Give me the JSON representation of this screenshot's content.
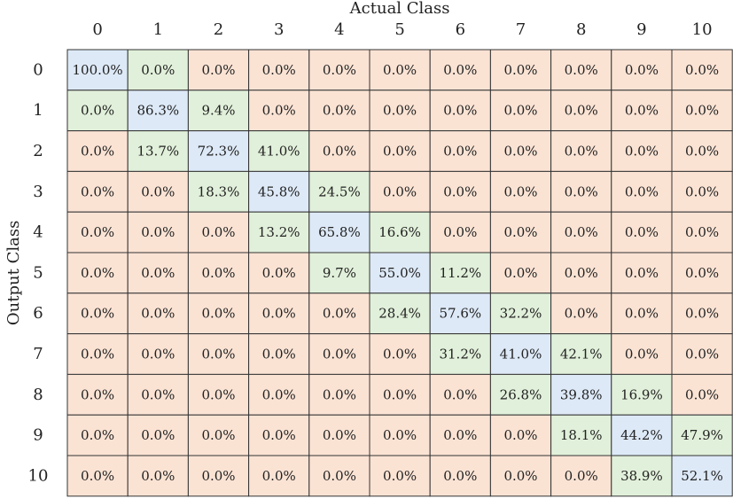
{
  "chart_data": {
    "type": "heatmap",
    "title": "",
    "xlabel": "Actual Class",
    "ylabel": "Output Class",
    "x_categories": [
      "0",
      "1",
      "2",
      "3",
      "4",
      "5",
      "6",
      "7",
      "8",
      "9",
      "10"
    ],
    "y_categories": [
      "0",
      "1",
      "2",
      "3",
      "4",
      "5",
      "6",
      "7",
      "8",
      "9",
      "10"
    ],
    "value_format": "percent",
    "values": [
      [
        100.0,
        0.0,
        0.0,
        0.0,
        0.0,
        0.0,
        0.0,
        0.0,
        0.0,
        0.0,
        0.0
      ],
      [
        0.0,
        86.3,
        9.4,
        0.0,
        0.0,
        0.0,
        0.0,
        0.0,
        0.0,
        0.0,
        0.0
      ],
      [
        0.0,
        13.7,
        72.3,
        41.0,
        0.0,
        0.0,
        0.0,
        0.0,
        0.0,
        0.0,
        0.0
      ],
      [
        0.0,
        0.0,
        18.3,
        45.8,
        24.5,
        0.0,
        0.0,
        0.0,
        0.0,
        0.0,
        0.0
      ],
      [
        0.0,
        0.0,
        0.0,
        13.2,
        65.8,
        16.6,
        0.0,
        0.0,
        0.0,
        0.0,
        0.0
      ],
      [
        0.0,
        0.0,
        0.0,
        0.0,
        9.7,
        55.0,
        11.2,
        0.0,
        0.0,
        0.0,
        0.0
      ],
      [
        0.0,
        0.0,
        0.0,
        0.0,
        0.0,
        28.4,
        57.6,
        32.2,
        0.0,
        0.0,
        0.0
      ],
      [
        0.0,
        0.0,
        0.0,
        0.0,
        0.0,
        0.0,
        31.2,
        41.0,
        42.1,
        0.0,
        0.0
      ],
      [
        0.0,
        0.0,
        0.0,
        0.0,
        0.0,
        0.0,
        0.0,
        26.8,
        39.8,
        16.9,
        0.0
      ],
      [
        0.0,
        0.0,
        0.0,
        0.0,
        0.0,
        0.0,
        0.0,
        0.0,
        18.1,
        44.2,
        47.9
      ],
      [
        0.0,
        0.0,
        0.0,
        0.0,
        0.0,
        0.0,
        0.0,
        0.0,
        0.0,
        38.9,
        52.1
      ]
    ],
    "colors": {
      "diagonal": "#dde9f7",
      "adjacent": "#e1f0da",
      "other": "#fbe3d4",
      "grid": "#333333",
      "text": "#222222"
    }
  }
}
